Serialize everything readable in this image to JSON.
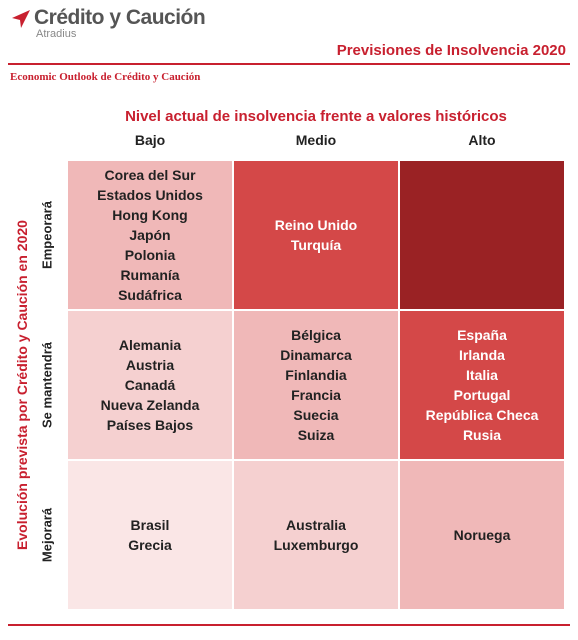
{
  "header": {
    "brand": "Crédito y Caución",
    "subbrand": "Atradius",
    "title": "Previsiones de Insolvencia 2020",
    "subtitle": "Economic Outlook de Crédito y Caución"
  },
  "matrix": {
    "x_title": "Nivel actual de insolvencia frente a valores históricos",
    "columns": [
      "Bajo",
      "Medio",
      "Alto"
    ],
    "y_title": "Evolución prevista por Crédito y Caución en 2020",
    "rows": [
      {
        "label": "Empeorará",
        "cells": [
          [
            "Corea del Sur",
            "Estados Unidos",
            "Hong Kong",
            "Japón",
            "Polonia",
            "Rumanía",
            "Sudáfrica"
          ],
          [
            "Reino Unido",
            "Turquía"
          ],
          []
        ]
      },
      {
        "label": "Se mantendrá",
        "cells": [
          [
            "Alemania",
            "Austria",
            "Canadá",
            "Nueva Zelanda",
            "Países Bajos"
          ],
          [
            "Bélgica",
            "Dinamarca",
            "Finlandia",
            "Francia",
            "Suecia",
            "Suiza"
          ],
          [
            "España",
            "Irlanda",
            "Italia",
            "Portugal",
            "República Checa",
            "Rusia"
          ]
        ]
      },
      {
        "label": "Mejorará",
        "cells": [
          [
            "Brasil",
            "Grecia"
          ],
          [
            "Australia",
            "Luxemburgo"
          ],
          [
            "Noruega"
          ]
        ]
      }
    ]
  }
}
